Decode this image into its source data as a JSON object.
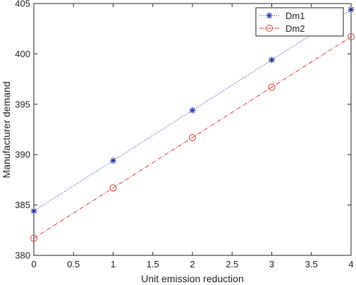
{
  "chart_data": {
    "type": "line",
    "xlabel": "Unit emission reduction",
    "ylabel": "Manufacturer demand",
    "xlim": [
      0,
      4
    ],
    "ylim": [
      380,
      405
    ],
    "x_ticks": [
      0,
      0.5,
      1,
      1.5,
      2,
      2.5,
      3,
      3.5,
      4
    ],
    "x_tick_labels": [
      "0",
      "0.5",
      "1",
      "1.5",
      "2",
      "2.5",
      "3",
      "3.5",
      "4"
    ],
    "y_ticks": [
      380,
      385,
      390,
      395,
      400,
      405
    ],
    "y_tick_labels": [
      "380",
      "385",
      "390",
      "395",
      "400",
      "405"
    ],
    "grid": false,
    "legend_position": "top-right",
    "x": [
      0,
      1,
      2,
      3,
      4
    ],
    "series": [
      {
        "name": "Dm1",
        "values": [
          384.4,
          389.4,
          394.4,
          399.4,
          404.4
        ],
        "color": "#1f2f9f",
        "marker": "asterisk",
        "line_style": "dotted"
      },
      {
        "name": "Dm2",
        "values": [
          381.7,
          386.7,
          391.7,
          396.7,
          401.7
        ],
        "color": "#d9403a",
        "marker": "circle",
        "line_style": "dash-dot"
      }
    ]
  }
}
